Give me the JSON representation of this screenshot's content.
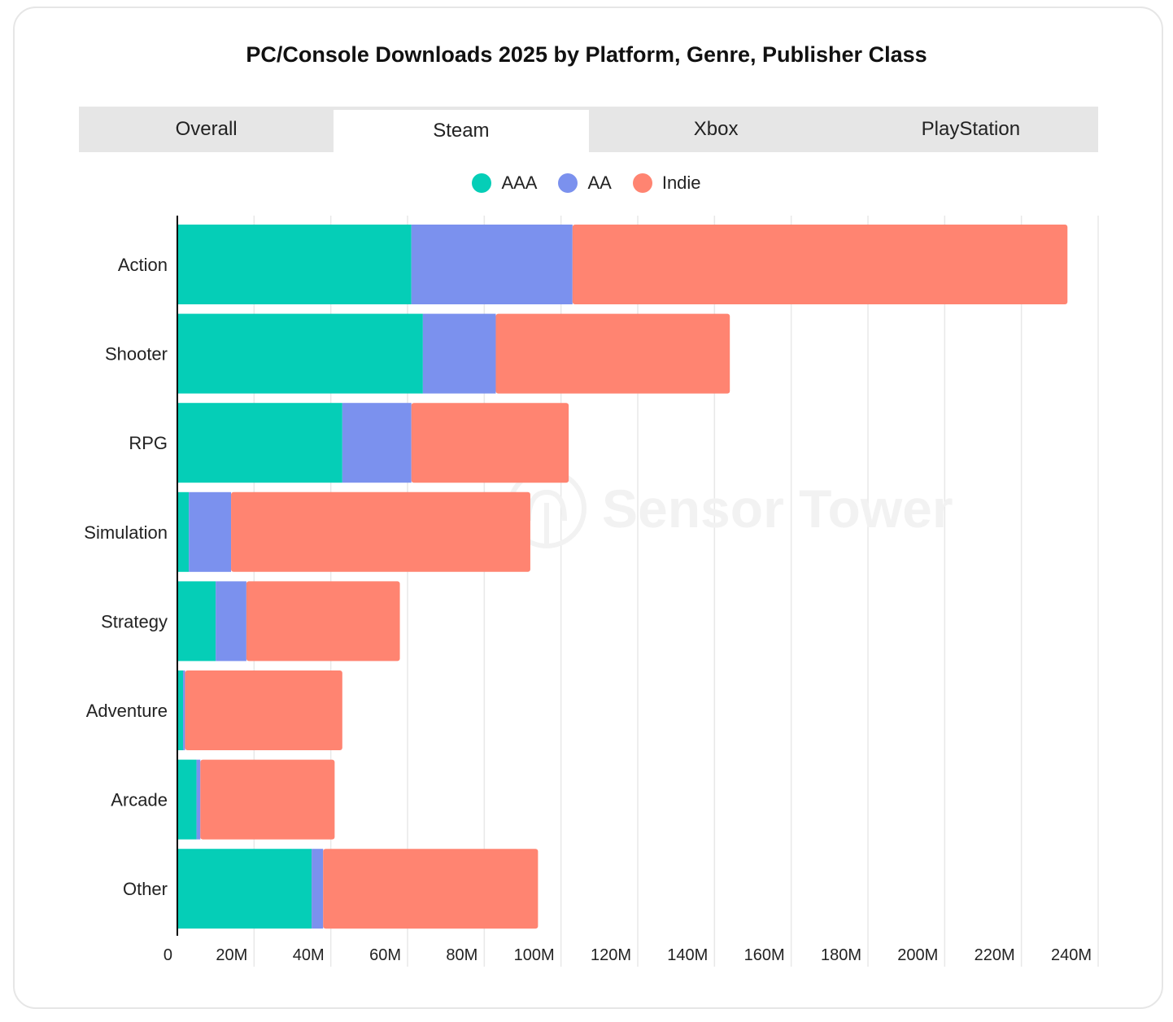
{
  "chart_data": {
    "type": "bar",
    "orientation": "horizontal",
    "stacked": true,
    "title": "PC/Console Downloads 2025 by Platform, Genre, Publisher Class",
    "categories": [
      "Action",
      "Shooter",
      "RPG",
      "Simulation",
      "Strategy",
      "Adventure",
      "Arcade",
      "Other"
    ],
    "series": [
      {
        "name": "AAA",
        "color": "#05ceb7",
        "values": [
          61,
          64,
          43,
          3,
          10,
          1.5,
          5,
          35
        ]
      },
      {
        "name": "AA",
        "color": "#7b91ee",
        "values": [
          42,
          19,
          18,
          11,
          8,
          0.5,
          1,
          3
        ]
      },
      {
        "name": "Indie",
        "color": "#ff8471",
        "values": [
          129,
          61,
          41,
          78,
          40,
          41,
          35,
          56
        ]
      }
    ],
    "xlim": [
      0,
      240
    ],
    "xticks": [
      0,
      20,
      40,
      60,
      80,
      100,
      120,
      140,
      160,
      180,
      200,
      220,
      240
    ],
    "xtick_labels": [
      "0",
      "20M",
      "40M",
      "60M",
      "80M",
      "100M",
      "120M",
      "140M",
      "160M",
      "180M",
      "200M",
      "220M",
      "240M"
    ],
    "grid": true,
    "legend_position": "top-center",
    "watermark": "Sensor Tower"
  },
  "tabs": [
    {
      "label": "Overall"
    },
    {
      "label": "Steam"
    },
    {
      "label": "Xbox"
    },
    {
      "label": "PlayStation"
    }
  ],
  "active_tab": "Steam"
}
